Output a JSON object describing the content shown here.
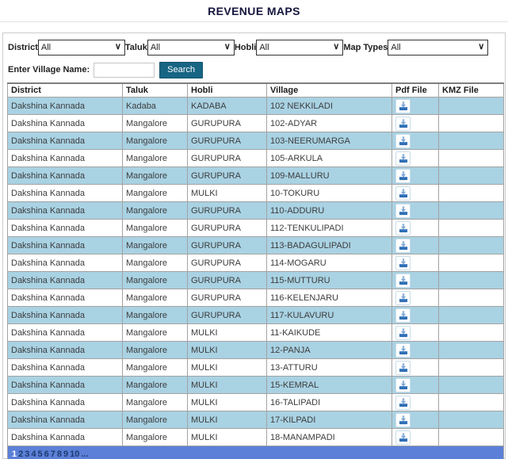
{
  "page": {
    "title": "REVENUE MAPS"
  },
  "filters": {
    "district": {
      "label": "District",
      "value": "All"
    },
    "taluk": {
      "label": "Taluk",
      "value": "All"
    },
    "hobli": {
      "label": "Hobli",
      "value": "All"
    },
    "map_types": {
      "label": "Map Types",
      "value": "All"
    }
  },
  "village_search": {
    "label": "Enter Village Name:",
    "value": "",
    "button_label": "Search"
  },
  "table": {
    "columns": [
      "District",
      "Taluk",
      "Hobli",
      "Village",
      "Pdf File",
      "KMZ File"
    ],
    "pdf_icon": "pdf-download-icon",
    "rows": [
      {
        "district": "Dakshina Kannada",
        "taluk": "Kadaba",
        "hobli": "KADABA",
        "village": "102 NEKKILADI",
        "pdf": true,
        "kmz": ""
      },
      {
        "district": "Dakshina Kannada",
        "taluk": "Mangalore",
        "hobli": "GURUPURA",
        "village": "102-ADYAR",
        "pdf": true,
        "kmz": ""
      },
      {
        "district": "Dakshina Kannada",
        "taluk": "Mangalore",
        "hobli": "GURUPURA",
        "village": "103-NEERUMARGA",
        "pdf": true,
        "kmz": ""
      },
      {
        "district": "Dakshina Kannada",
        "taluk": "Mangalore",
        "hobli": "GURUPURA",
        "village": "105-ARKULA",
        "pdf": true,
        "kmz": ""
      },
      {
        "district": "Dakshina Kannada",
        "taluk": "Mangalore",
        "hobli": "GURUPURA",
        "village": "109-MALLURU",
        "pdf": true,
        "kmz": ""
      },
      {
        "district": "Dakshina Kannada",
        "taluk": "Mangalore",
        "hobli": "MULKI",
        "village": "10-TOKURU",
        "pdf": true,
        "kmz": ""
      },
      {
        "district": "Dakshina Kannada",
        "taluk": "Mangalore",
        "hobli": "GURUPURA",
        "village": "110-ADDURU",
        "pdf": true,
        "kmz": ""
      },
      {
        "district": "Dakshina Kannada",
        "taluk": "Mangalore",
        "hobli": "GURUPURA",
        "village": "112-TENKULIPADI",
        "pdf": true,
        "kmz": ""
      },
      {
        "district": "Dakshina Kannada",
        "taluk": "Mangalore",
        "hobli": "GURUPURA",
        "village": "113-BADAGULIPADI",
        "pdf": true,
        "kmz": ""
      },
      {
        "district": "Dakshina Kannada",
        "taluk": "Mangalore",
        "hobli": "GURUPURA",
        "village": "114-MOGARU",
        "pdf": true,
        "kmz": ""
      },
      {
        "district": "Dakshina Kannada",
        "taluk": "Mangalore",
        "hobli": "GURUPURA",
        "village": "115-MUTTURU",
        "pdf": true,
        "kmz": ""
      },
      {
        "district": "Dakshina Kannada",
        "taluk": "Mangalore",
        "hobli": "GURUPURA",
        "village": "116-KELENJARU",
        "pdf": true,
        "kmz": ""
      },
      {
        "district": "Dakshina Kannada",
        "taluk": "Mangalore",
        "hobli": "GURUPURA",
        "village": "117-KULAVURU",
        "pdf": true,
        "kmz": ""
      },
      {
        "district": "Dakshina Kannada",
        "taluk": "Mangalore",
        "hobli": "MULKI",
        "village": "11-KAIKUDE",
        "pdf": true,
        "kmz": ""
      },
      {
        "district": "Dakshina Kannada",
        "taluk": "Mangalore",
        "hobli": "MULKI",
        "village": "12-PANJA",
        "pdf": true,
        "kmz": ""
      },
      {
        "district": "Dakshina Kannada",
        "taluk": "Mangalore",
        "hobli": "MULKI",
        "village": "13-ATTURU",
        "pdf": true,
        "kmz": ""
      },
      {
        "district": "Dakshina Kannada",
        "taluk": "Mangalore",
        "hobli": "MULKI",
        "village": "15-KEMRAL",
        "pdf": true,
        "kmz": ""
      },
      {
        "district": "Dakshina Kannada",
        "taluk": "Mangalore",
        "hobli": "MULKI",
        "village": "16-TALIPADI",
        "pdf": true,
        "kmz": ""
      },
      {
        "district": "Dakshina Kannada",
        "taluk": "Mangalore",
        "hobli": "MULKI",
        "village": "17-KILPADI",
        "pdf": true,
        "kmz": ""
      },
      {
        "district": "Dakshina Kannada",
        "taluk": "Mangalore",
        "hobli": "MULKI",
        "village": "18-MANAMPADI",
        "pdf": true,
        "kmz": ""
      }
    ]
  },
  "pagination": {
    "current": "1",
    "pages": [
      "2",
      "3",
      "4",
      "5",
      "6",
      "7",
      "8",
      "9",
      "10",
      "..."
    ]
  },
  "colors": {
    "row_highlight": "#a9d2e3",
    "pagination_bg": "#5c80d8",
    "pagination_link": "#1c3a6e",
    "pagination_current": "#ffffff",
    "search_button": "#176583",
    "title_text": "#16163e",
    "table_border": "#a3a3a3"
  }
}
